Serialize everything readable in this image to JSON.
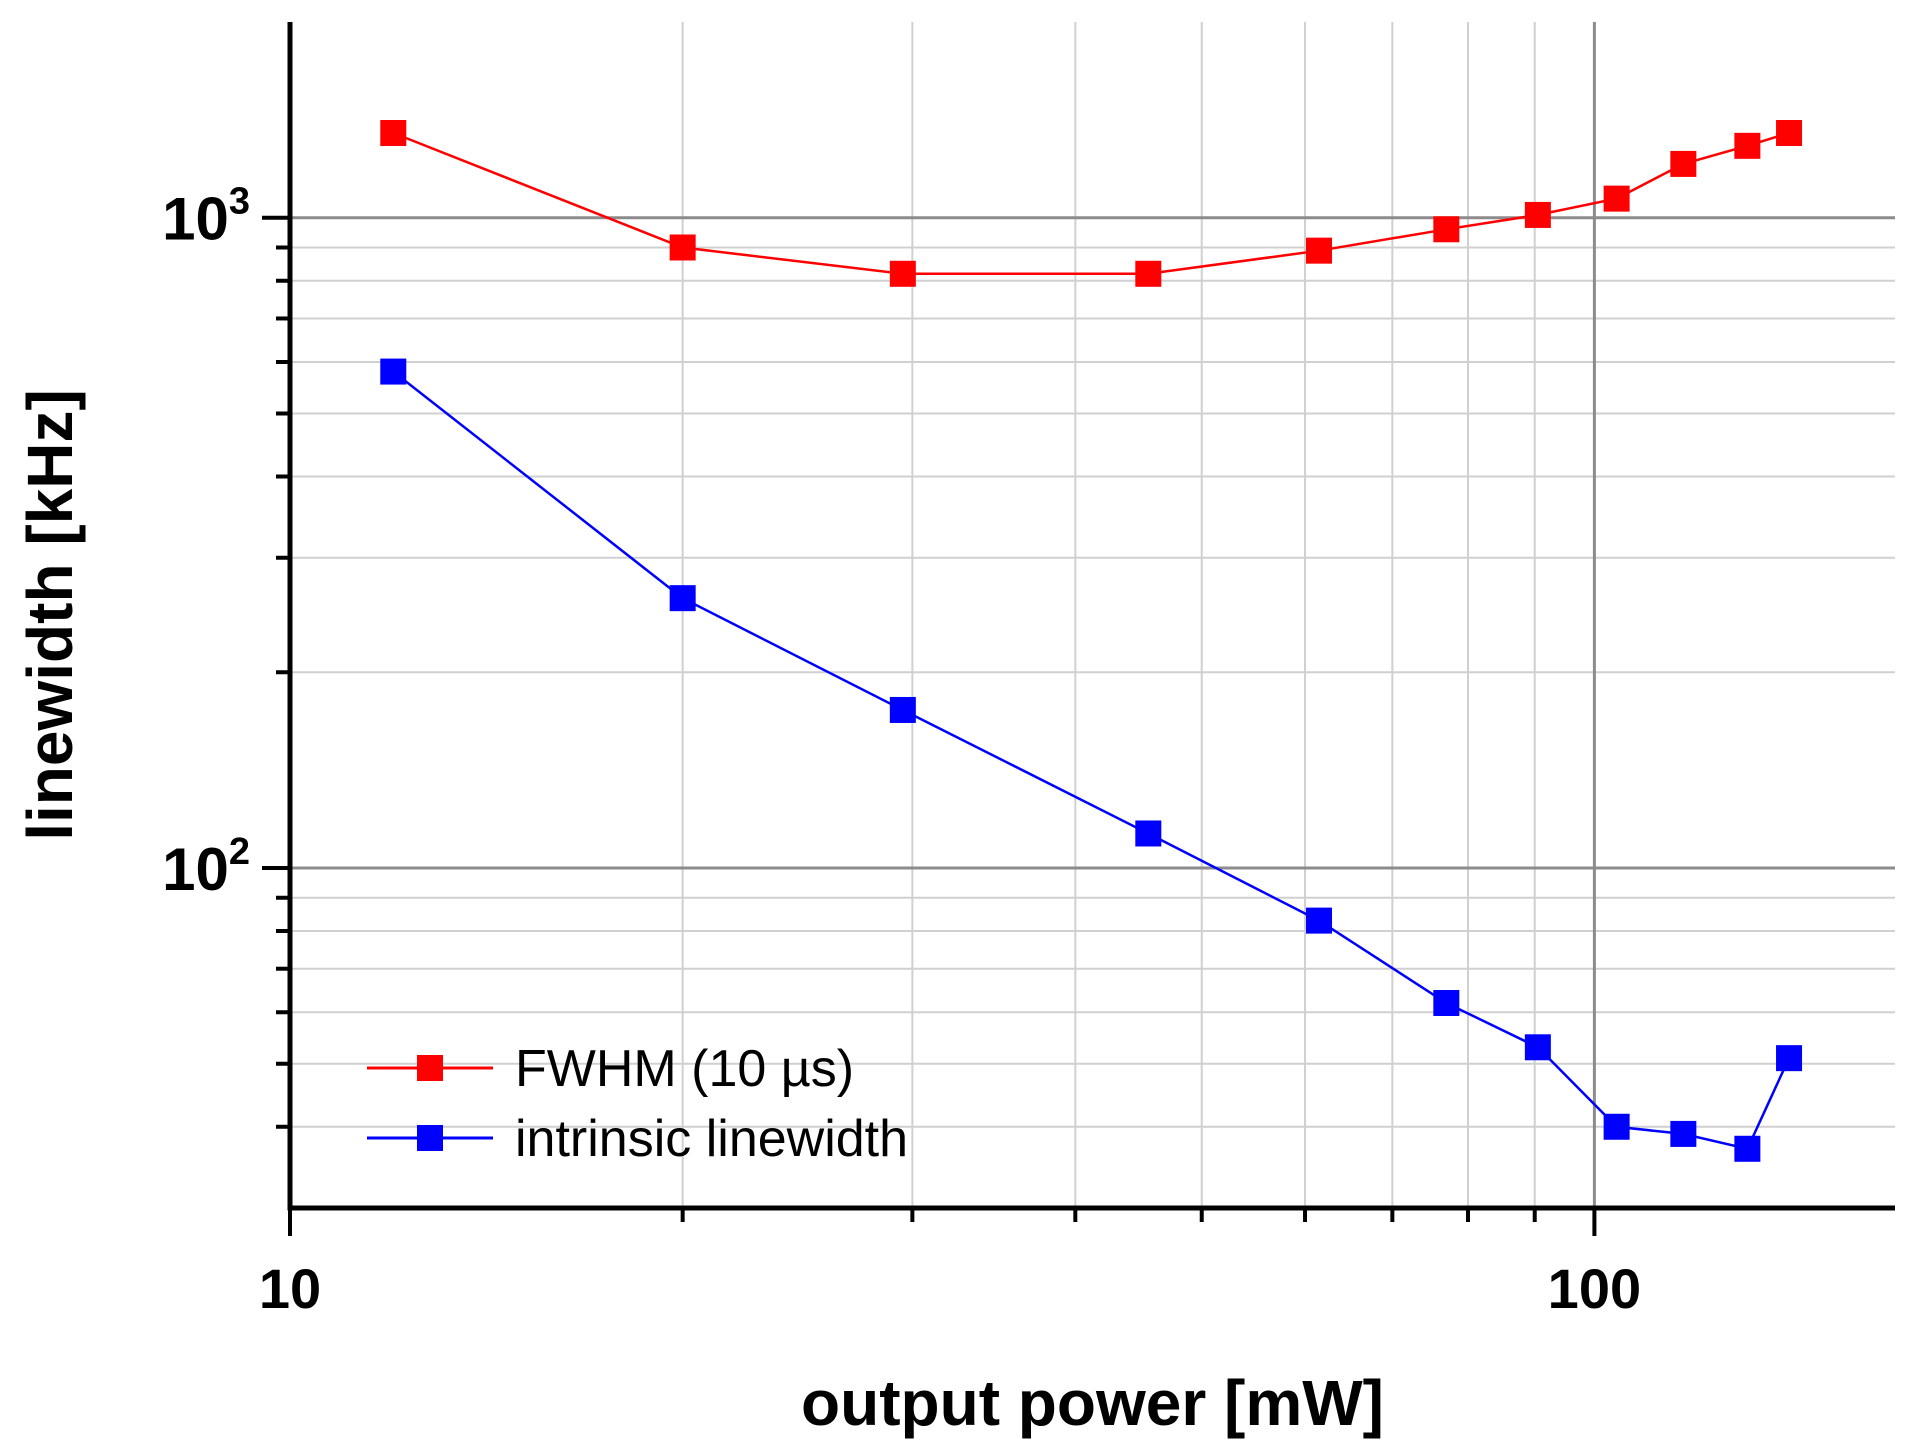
{
  "chart_data": {
    "type": "line",
    "title": "",
    "xlabel": "output power [mW]",
    "ylabel": "linewidth [kHz]",
    "xscale": "log",
    "yscale": "log",
    "xlim": [
      10,
      170
    ],
    "ylim": [
      30,
      2000
    ],
    "x_ticks": [
      {
        "value": 10,
        "label": "10"
      },
      {
        "value": 100,
        "label": "100"
      }
    ],
    "y_ticks": [
      {
        "value": 100,
        "base": "10",
        "exp": "2"
      },
      {
        "value": 1000,
        "base": "10",
        "exp": "3"
      }
    ],
    "grid": true,
    "legend_position": "bottom-left",
    "series": [
      {
        "name": "FWHM (10 µs)",
        "color": "#ff0000",
        "marker": "square",
        "x": [
          12,
          20,
          29.5,
          45.5,
          61.5,
          77,
          90.5,
          104,
          117,
          131,
          141
        ],
        "y": [
          1350,
          900,
          820,
          820,
          890,
          960,
          1010,
          1070,
          1210,
          1290,
          1350
        ]
      },
      {
        "name": "intrinsic linewidth",
        "color": "#0000ff",
        "marker": "square",
        "x": [
          12,
          20,
          29.5,
          45.5,
          61.5,
          77,
          90.5,
          104,
          117,
          131,
          141
        ],
        "y": [
          580,
          260,
          175,
          113,
          83,
          62,
          53,
          40,
          39,
          37,
          51
        ]
      }
    ]
  }
}
